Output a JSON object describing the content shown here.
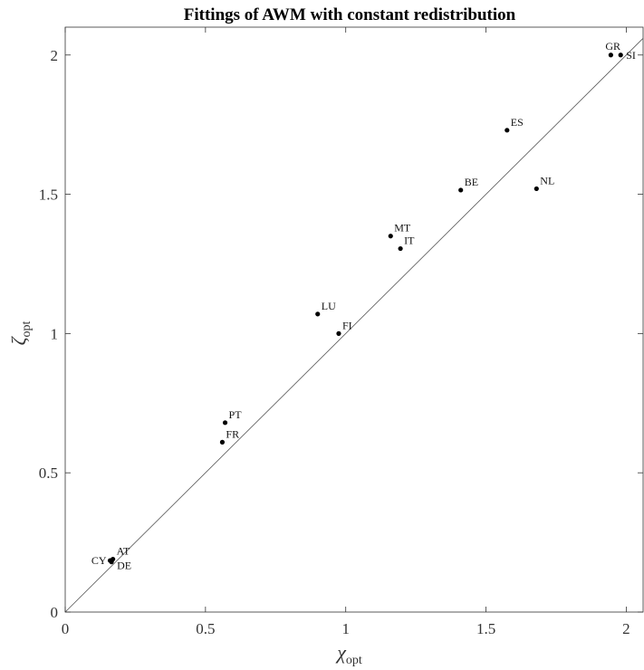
{
  "chart_data": {
    "type": "scatter",
    "title": "Fittings of AWM with constant redistribution",
    "xlabel": {
      "symbol": "χ",
      "subscript": "opt"
    },
    "ylabel": {
      "symbol": "ζ",
      "subscript": "opt"
    },
    "xlim": [
      0,
      2.06
    ],
    "ylim": [
      0,
      2.1
    ],
    "x_ticks": [
      0,
      0.5,
      1,
      1.5,
      2
    ],
    "x_tick_labels": [
      "0",
      "0.5",
      "1",
      "1.5",
      "2"
    ],
    "y_ticks": [
      0,
      0.5,
      1,
      1.5,
      2
    ],
    "y_tick_labels": [
      "0",
      "0.5",
      "1",
      "1.5",
      "2"
    ],
    "grid": false,
    "reference_line": "y = x",
    "points": [
      {
        "label": "GR",
        "x": 1.945,
        "y": 2.0,
        "label_pos": "above-left"
      },
      {
        "label": "SI",
        "x": 1.98,
        "y": 2.0,
        "label_pos": "right"
      },
      {
        "label": "ES",
        "x": 1.575,
        "y": 1.73,
        "label_pos": "above-right"
      },
      {
        "label": "BE",
        "x": 1.41,
        "y": 1.515,
        "label_pos": "above-right"
      },
      {
        "label": "NL",
        "x": 1.68,
        "y": 1.52,
        "label_pos": "above-right"
      },
      {
        "label": "MT",
        "x": 1.16,
        "y": 1.35,
        "label_pos": "above-right"
      },
      {
        "label": "IT",
        "x": 1.195,
        "y": 1.305,
        "label_pos": "above-right"
      },
      {
        "label": "LU",
        "x": 0.9,
        "y": 1.07,
        "label_pos": "above-right"
      },
      {
        "label": "FI",
        "x": 0.975,
        "y": 1.0,
        "label_pos": "above-right"
      },
      {
        "label": "PT",
        "x": 0.57,
        "y": 0.68,
        "label_pos": "above-right"
      },
      {
        "label": "FR",
        "x": 0.56,
        "y": 0.61,
        "label_pos": "above-right"
      },
      {
        "label": "AT",
        "x": 0.17,
        "y": 0.19,
        "label_pos": "above-right"
      },
      {
        "label": "CY",
        "x": 0.16,
        "y": 0.185,
        "label_pos": "left"
      },
      {
        "label": "DE",
        "x": 0.165,
        "y": 0.18,
        "label_pos": "below-right"
      }
    ],
    "colors": {
      "points": "#000000",
      "reference_line": "#555555",
      "axes": "#333333"
    }
  }
}
